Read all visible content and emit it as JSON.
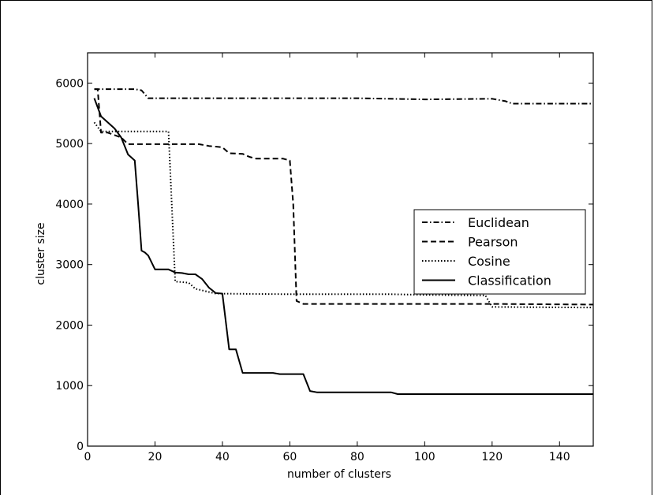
{
  "chart_data": {
    "type": "line",
    "title": "",
    "xlabel": "number of clusters",
    "ylabel": "cluster size",
    "xlim": [
      0,
      150
    ],
    "ylim": [
      0,
      6500
    ],
    "xticks": [
      0,
      20,
      40,
      60,
      80,
      100,
      120,
      140
    ],
    "yticks": [
      0,
      1000,
      2000,
      3000,
      4000,
      5000,
      6000
    ],
    "grid": false,
    "legend_position": "center-right",
    "series": [
      {
        "name": "Euclidean",
        "style": "dashdot",
        "points": [
          [
            2,
            5900
          ],
          [
            14,
            5900
          ],
          [
            16,
            5880
          ],
          [
            18,
            5750
          ],
          [
            60,
            5750
          ],
          [
            80,
            5750
          ],
          [
            100,
            5730
          ],
          [
            120,
            5740
          ],
          [
            124,
            5700
          ],
          [
            126,
            5660
          ],
          [
            150,
            5660
          ]
        ]
      },
      {
        "name": "Pearson",
        "style": "dashed",
        "points": [
          [
            2,
            5900
          ],
          [
            3,
            5900
          ],
          [
            4,
            5180
          ],
          [
            6,
            5180
          ],
          [
            10,
            5100
          ],
          [
            12,
            4990
          ],
          [
            33,
            4990
          ],
          [
            36,
            4960
          ],
          [
            40,
            4940
          ],
          [
            42,
            4840
          ],
          [
            46,
            4830
          ],
          [
            48,
            4780
          ],
          [
            50,
            4750
          ],
          [
            58,
            4750
          ],
          [
            60,
            4720
          ],
          [
            61,
            4000
          ],
          [
            62,
            2400
          ],
          [
            64,
            2350
          ],
          [
            120,
            2350
          ],
          [
            150,
            2340
          ]
        ]
      },
      {
        "name": "Cosine",
        "style": "dotted",
        "points": [
          [
            2,
            5350
          ],
          [
            4,
            5200
          ],
          [
            24,
            5200
          ],
          [
            26,
            2720
          ],
          [
            30,
            2700
          ],
          [
            32,
            2600
          ],
          [
            38,
            2520
          ],
          [
            60,
            2510
          ],
          [
            90,
            2510
          ],
          [
            100,
            2500
          ],
          [
            118,
            2490
          ],
          [
            120,
            2300
          ],
          [
            150,
            2290
          ]
        ]
      },
      {
        "name": "Classification",
        "style": "solid",
        "points": [
          [
            2,
            5750
          ],
          [
            4,
            5450
          ],
          [
            6,
            5350
          ],
          [
            8,
            5250
          ],
          [
            10,
            5100
          ],
          [
            12,
            4820
          ],
          [
            14,
            4720
          ],
          [
            15,
            4000
          ],
          [
            16,
            3230
          ],
          [
            17,
            3200
          ],
          [
            18,
            3150
          ],
          [
            20,
            2920
          ],
          [
            24,
            2920
          ],
          [
            26,
            2870
          ],
          [
            28,
            2860
          ],
          [
            30,
            2840
          ],
          [
            32,
            2840
          ],
          [
            34,
            2760
          ],
          [
            36,
            2620
          ],
          [
            38,
            2530
          ],
          [
            40,
            2520
          ],
          [
            42,
            1600
          ],
          [
            44,
            1600
          ],
          [
            46,
            1210
          ],
          [
            50,
            1210
          ],
          [
            55,
            1210
          ],
          [
            57,
            1190
          ],
          [
            64,
            1190
          ],
          [
            66,
            910
          ],
          [
            68,
            890
          ],
          [
            90,
            890
          ],
          [
            92,
            860
          ],
          [
            150,
            860
          ]
        ]
      }
    ]
  }
}
